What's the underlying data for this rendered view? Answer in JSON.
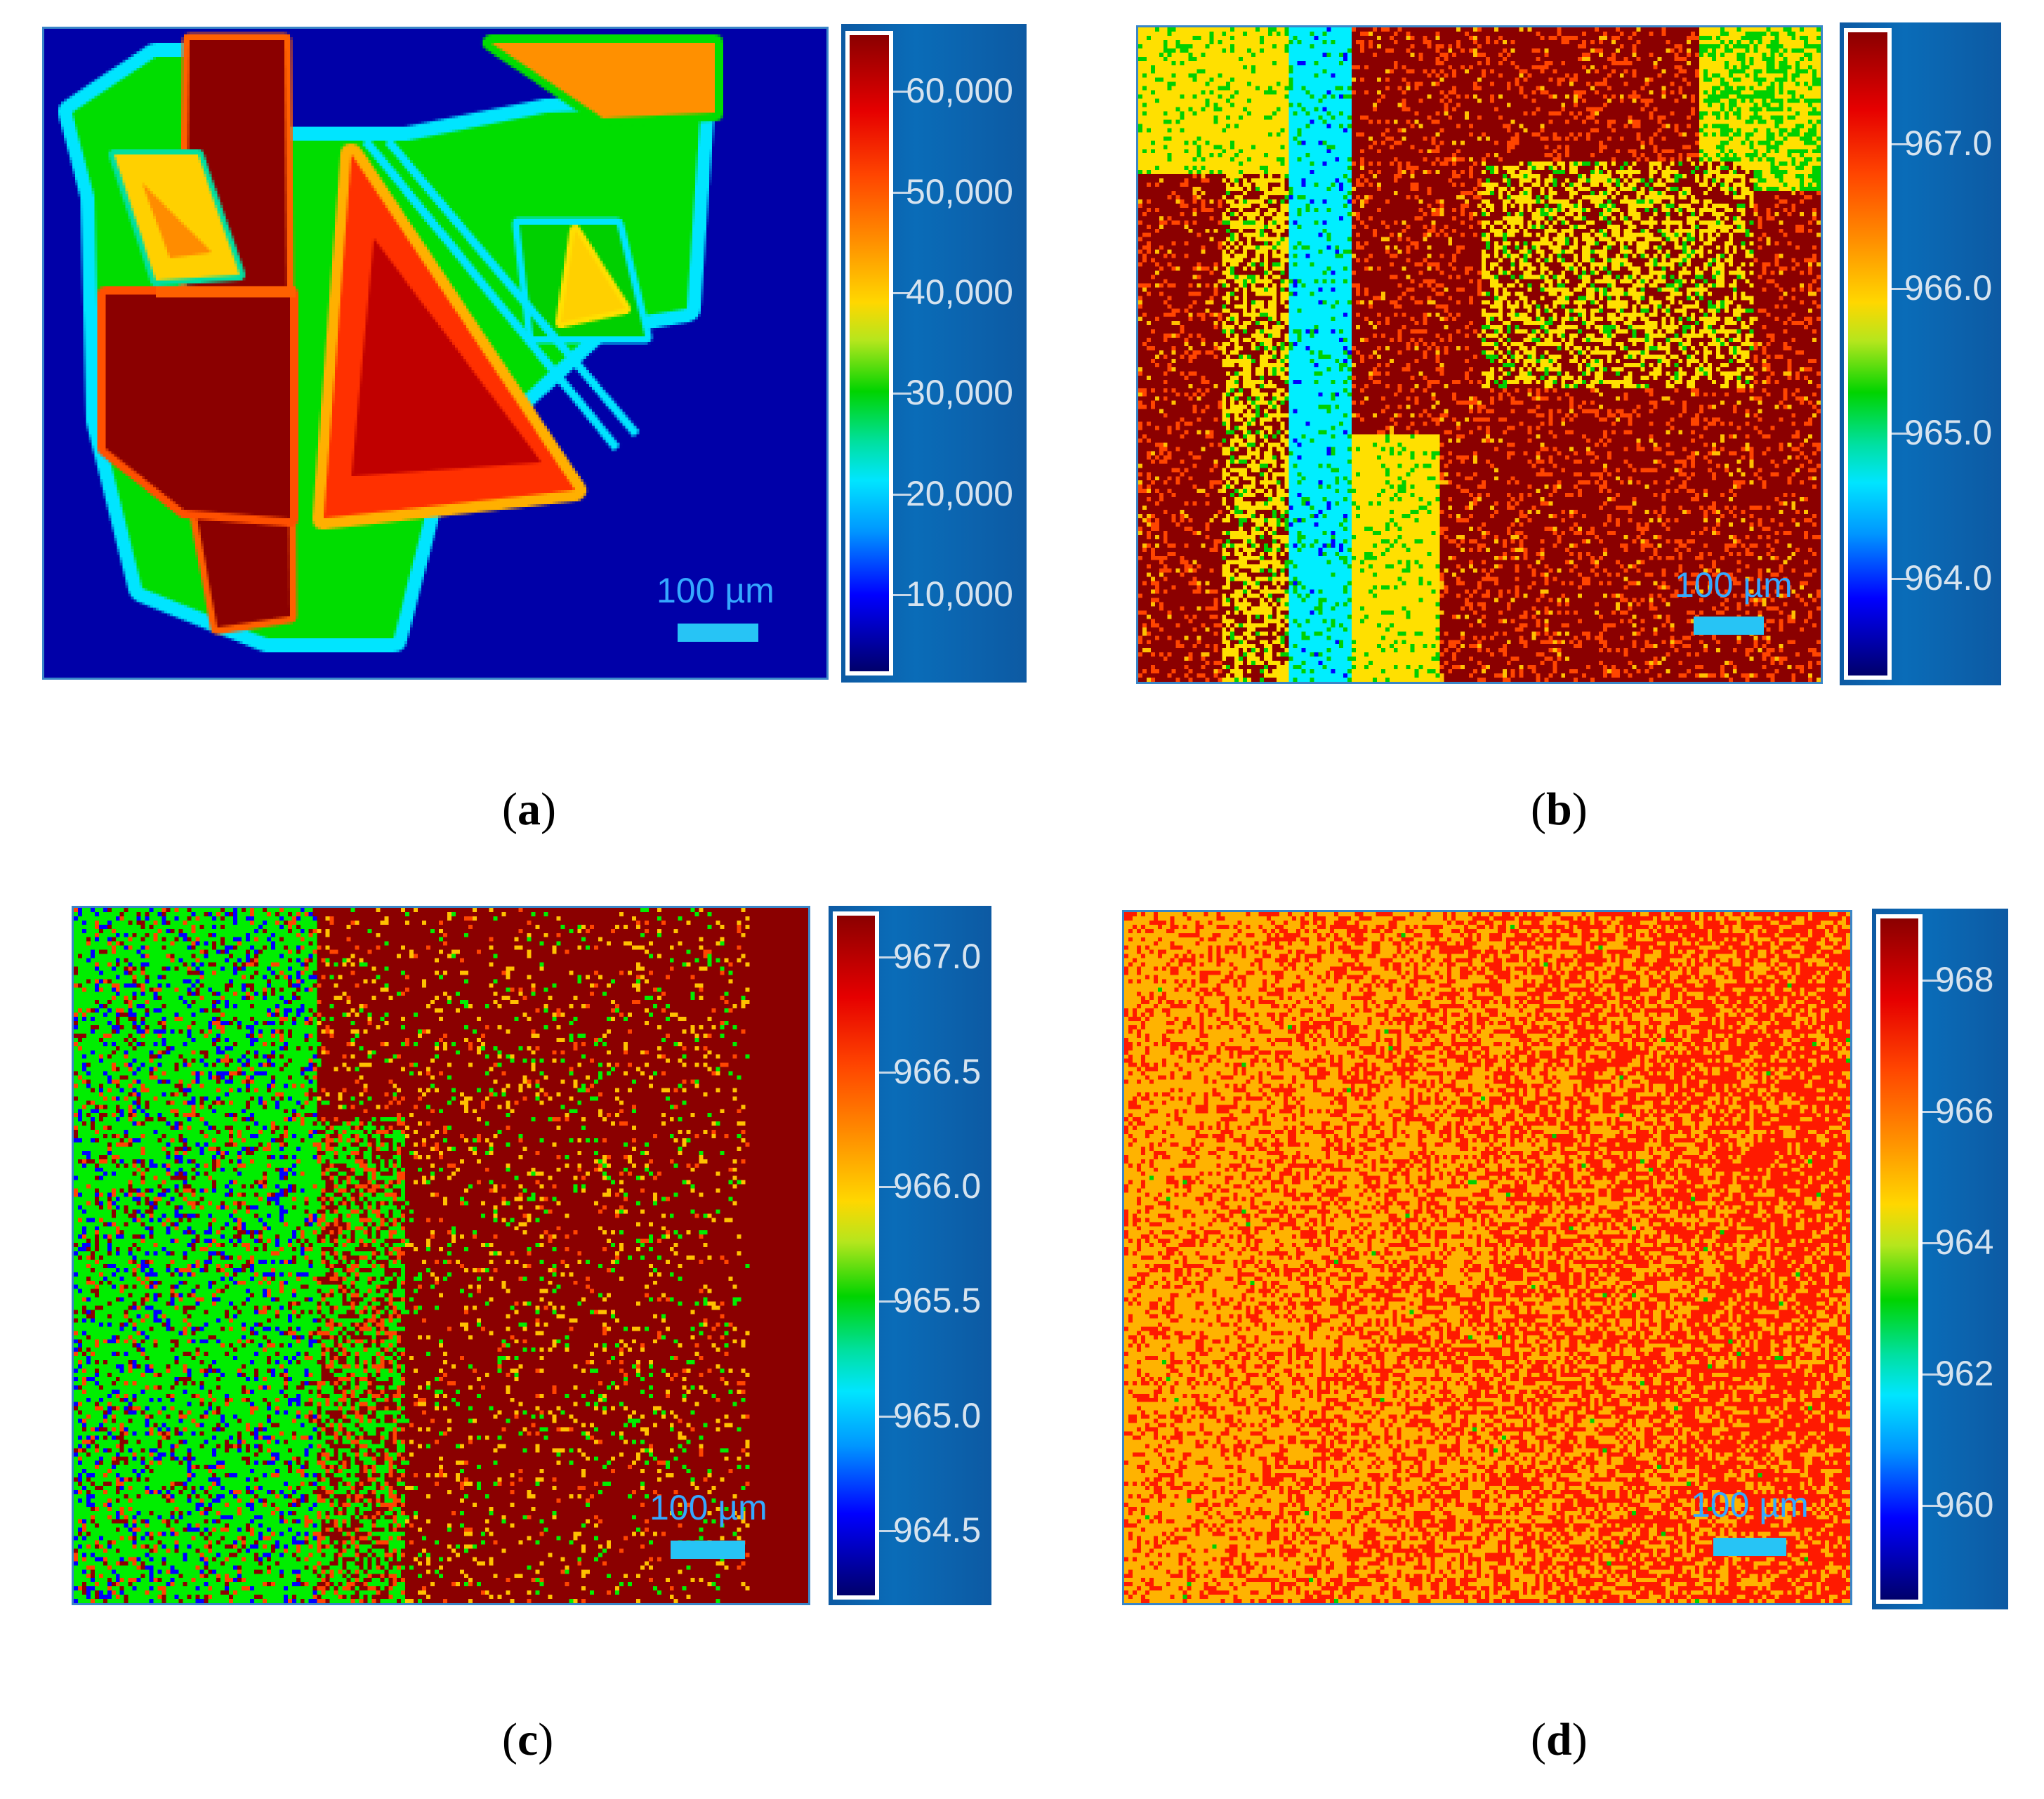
{
  "panels": [
    {
      "id": "a",
      "caption_letter": "a",
      "scale_bar_label": "100 µm",
      "colorbar": {
        "ticks": [
          "60,000",
          "50,000",
          "40,000",
          "30,000",
          "20,000",
          "10,000"
        ],
        "range": [
          2000,
          66000
        ]
      },
      "map_description": "flakes"
    },
    {
      "id": "b",
      "caption_letter": "b",
      "scale_bar_label": "100 µm",
      "colorbar": {
        "ticks": [
          "967.0",
          "966.0",
          "965.0",
          "964.0"
        ],
        "range": [
          963.3,
          967.8
        ]
      }
    },
    {
      "id": "c",
      "caption_letter": "c",
      "scale_bar_label": "100 µm",
      "colorbar": {
        "ticks": [
          "967.0",
          "966.5",
          "966.0",
          "965.5",
          "965.0",
          "964.5"
        ],
        "range": [
          964.2,
          967.2
        ]
      }
    },
    {
      "id": "d",
      "caption_letter": "d",
      "scale_bar_label": "100 µm",
      "colorbar": {
        "ticks": [
          "968",
          "966",
          "964",
          "962",
          "960"
        ],
        "range": [
          958.5,
          969
        ]
      }
    }
  ],
  "chart_data": [
    {
      "type": "heatmap",
      "title": "",
      "colorbar_ticks": [
        60000,
        50000,
        40000,
        30000,
        20000,
        10000
      ],
      "scale_bar": "100 µm"
    },
    {
      "type": "heatmap",
      "title": "",
      "colorbar_ticks": [
        967.0,
        966.0,
        965.0,
        964.0
      ],
      "scale_bar": "100 µm"
    },
    {
      "type": "heatmap",
      "title": "",
      "colorbar_ticks": [
        967.0,
        966.5,
        966.0,
        965.5,
        965.0,
        964.5
      ],
      "scale_bar": "100 µm"
    },
    {
      "type": "heatmap",
      "title": "",
      "colorbar_ticks": [
        968,
        966,
        964,
        962,
        960
      ],
      "scale_bar": "100 µm"
    }
  ]
}
